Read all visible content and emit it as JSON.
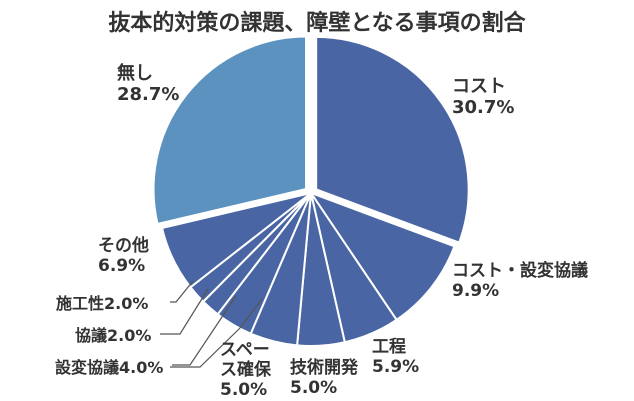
{
  "chart_data": {
    "type": "pie",
    "title": "抜本的対策の課題、障壁となる事項の割合",
    "slices": [
      {
        "label_lines": [
          "コスト"
        ],
        "value_text": "30.7%",
        "value": 30.7,
        "color": "#4a65a4"
      },
      {
        "label_lines": [
          "コスト・設変協議"
        ],
        "value_text": "9.9%",
        "value": 9.9,
        "color": "#4a65a4"
      },
      {
        "label_lines": [
          "工程"
        ],
        "value_text": "5.9%",
        "value": 5.9,
        "color": "#4a65a4"
      },
      {
        "label_lines": [
          "技術開発"
        ],
        "value_text": "5.0%",
        "value": 5.0,
        "color": "#4a65a4"
      },
      {
        "label_lines": [
          "スペー",
          "ス確保"
        ],
        "value_text": "5.0%",
        "value": 5.0,
        "color": "#4a65a4"
      },
      {
        "label_lines": [
          "設変協議"
        ],
        "value_text": "4.0%",
        "value": 4.0,
        "color": "#4a65a4"
      },
      {
        "label_lines": [
          "協議"
        ],
        "value_text": "2.0%",
        "value": 2.0,
        "color": "#4a65a4"
      },
      {
        "label_lines": [
          "施工性"
        ],
        "value_text": "2.0%",
        "value": 2.0,
        "color": "#4a65a4"
      },
      {
        "label_lines": [
          "その他"
        ],
        "value_text": "6.9%",
        "value": 6.9,
        "color": "#4a65a4"
      },
      {
        "label_lines": [
          "無し"
        ],
        "value_text": "28.7%",
        "value": 28.7,
        "color": "#5b92bf"
      }
    ],
    "start_angle_deg": 0,
    "direction": "clockwise",
    "explode": [
      "コスト",
      "無し"
    ],
    "legend": "none",
    "grid": false
  }
}
